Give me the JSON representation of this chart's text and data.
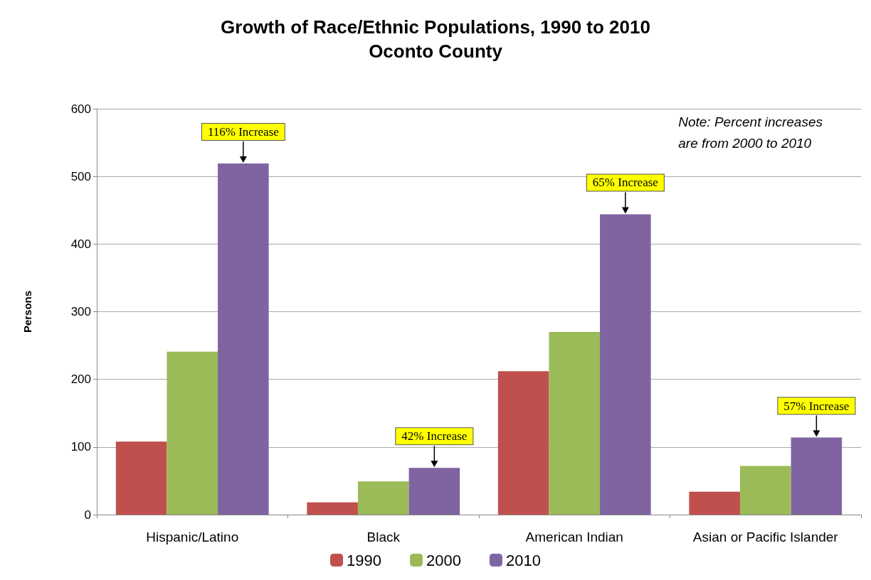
{
  "chart_data": {
    "type": "bar",
    "title": "Growth of Race/Ethnic Populations, 1990 to 2010\nOconto County",
    "ylabel": "Persons",
    "categories": [
      "Hispanic/Latino",
      "Black",
      "American Indian",
      "Asian or Pacific Islander"
    ],
    "series": [
      {
        "name": "1990",
        "color": "#c0504d",
        "values": [
          108,
          18,
          212,
          34
        ]
      },
      {
        "name": "2000",
        "color": "#9bbb59",
        "values": [
          241,
          49,
          270,
          72
        ]
      },
      {
        "name": "2010",
        "color": "#8064a2",
        "values": [
          519,
          69,
          444,
          114
        ]
      }
    ],
    "ylim": [
      0,
      600
    ],
    "yticks": [
      0,
      100,
      200,
      300,
      400,
      500,
      600
    ],
    "grid": "y",
    "legend": "bottom",
    "annotations": [
      {
        "text": "116% Increase",
        "y": 519
      },
      {
        "text": "42% Increase",
        "y": 69
      },
      {
        "text": "65% Increase",
        "y": 444
      },
      {
        "text": "57% Increase",
        "y": 114
      },
      "Note: Percent increases\nare from 2000 to 2010"
    ]
  }
}
